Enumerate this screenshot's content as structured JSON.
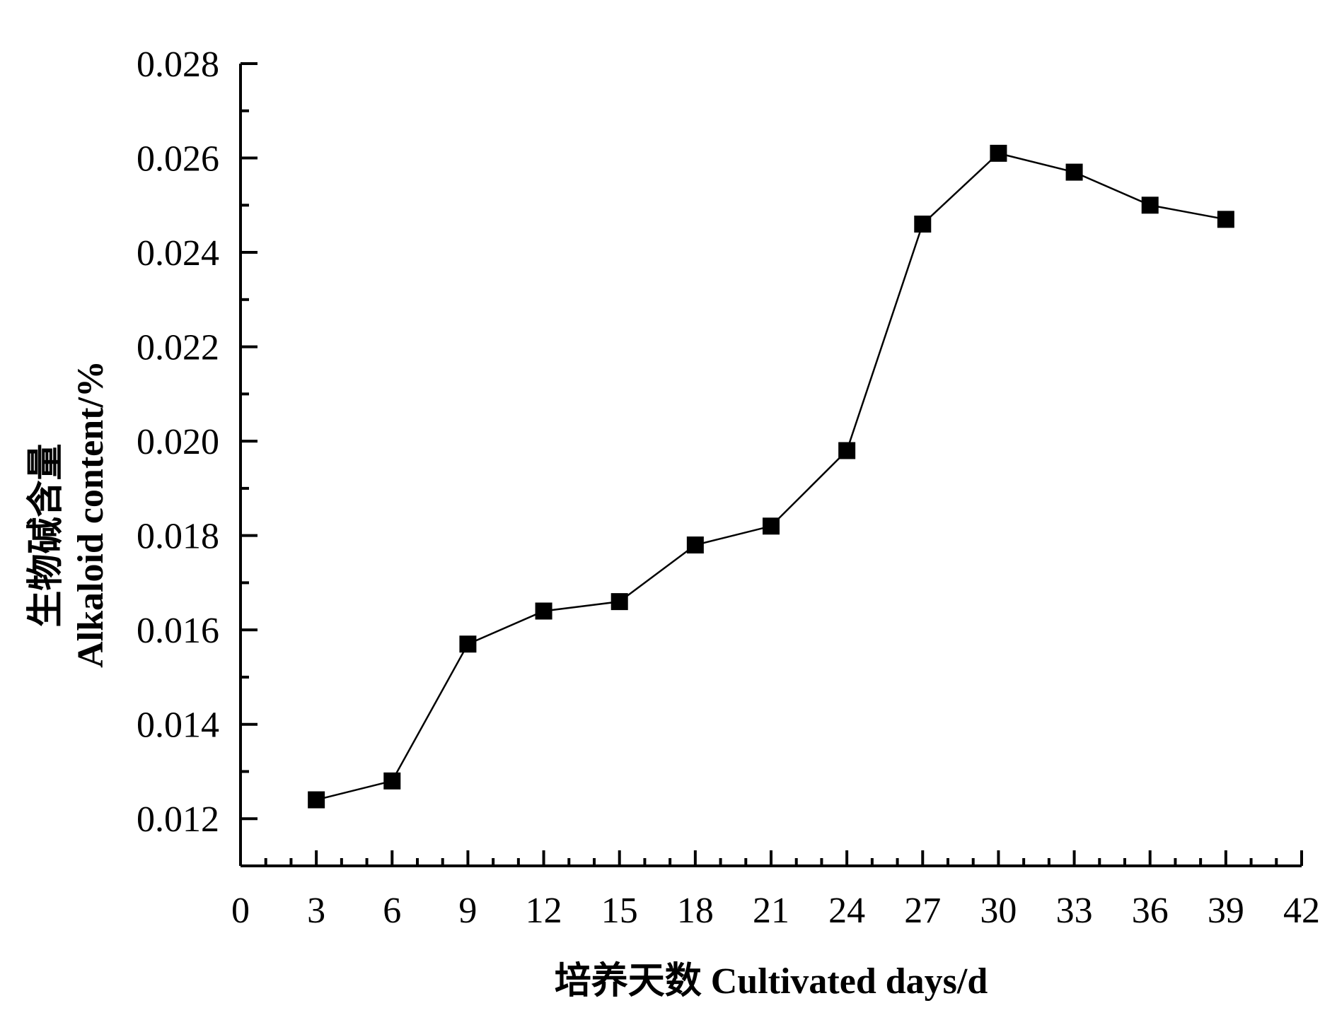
{
  "chart_data": {
    "type": "line",
    "xlabel": "培养天数 Cultivated days/d",
    "ylabel_line1": "生物碱含量",
    "ylabel_line2": "Alkaloid content/%",
    "xlim": [
      0,
      42
    ],
    "ylim": [
      0.011,
      0.028
    ],
    "x_ticks": [
      0,
      3,
      6,
      9,
      12,
      15,
      18,
      21,
      24,
      27,
      30,
      33,
      36,
      39,
      42
    ],
    "y_ticks": [
      0.012,
      0.014,
      0.016,
      0.018,
      0.02,
      0.022,
      0.024,
      0.026,
      0.028
    ],
    "x_tick_labels": [
      "0",
      "3",
      "6",
      "9",
      "12",
      "15",
      "18",
      "21",
      "24",
      "27",
      "30",
      "33",
      "36",
      "39",
      "42"
    ],
    "y_tick_labels": [
      "0.012",
      "0.014",
      "0.016",
      "0.018",
      "0.020",
      "0.022",
      "0.024",
      "0.026",
      "0.028"
    ],
    "x": [
      3,
      6,
      9,
      12,
      15,
      18,
      21,
      24,
      27,
      30,
      33,
      36,
      39
    ],
    "series": [
      {
        "values": [
          0.0124,
          0.0128,
          0.0157,
          0.0164,
          0.0166,
          0.0178,
          0.0182,
          0.0198,
          0.0246,
          0.0261,
          0.0257,
          0.025,
          0.0247
        ],
        "color": "#000000",
        "marker": "square"
      }
    ],
    "grid": false,
    "legend": "none"
  }
}
